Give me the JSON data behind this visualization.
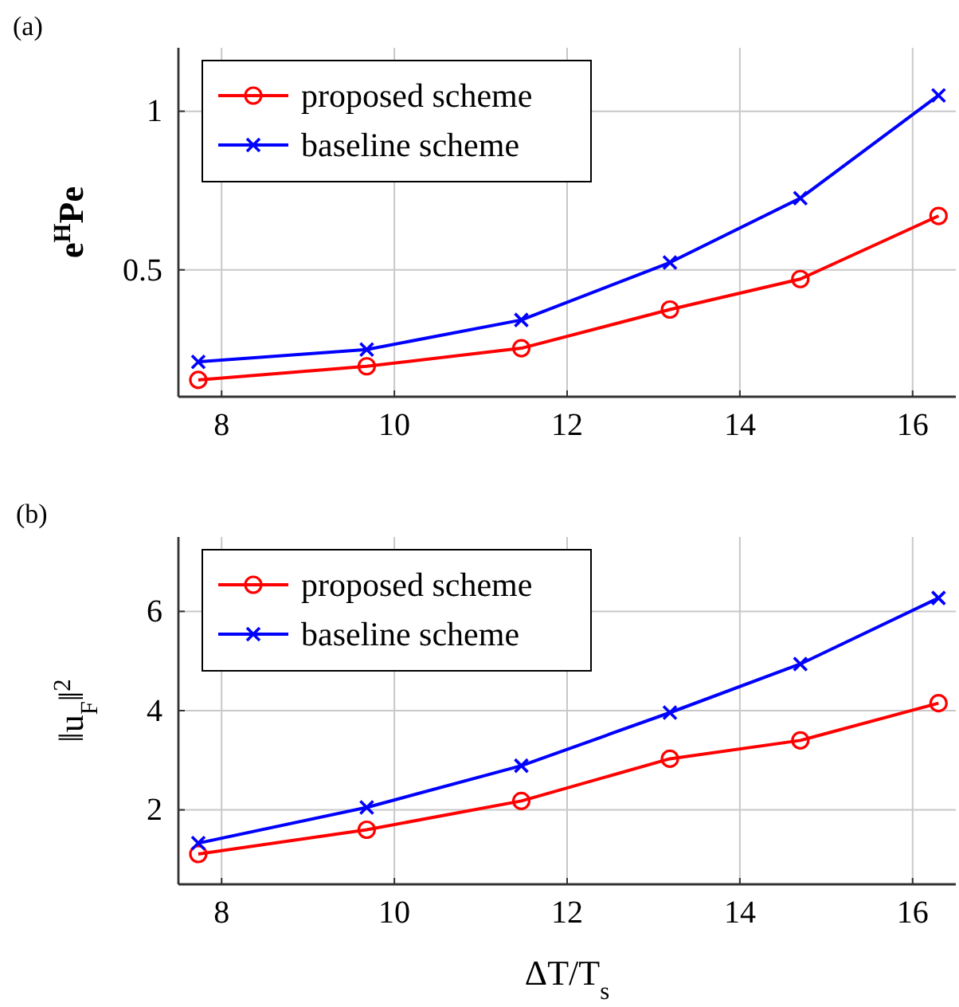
{
  "chart_data": [
    {
      "type": "line",
      "title": "(a)",
      "ylabel": "e$^{H}$Pe",
      "x": [
        7.73,
        9.68,
        11.47,
        13.19,
        14.7,
        16.3
      ],
      "xlim": [
        7.5,
        16.5
      ],
      "xticks": [
        8,
        10,
        12,
        14,
        16
      ],
      "ylim": [
        0.1,
        1.2
      ],
      "yticks": [
        0.5,
        1
      ],
      "grid": true,
      "legend": "top left",
      "line_style": "solid",
      "series": [
        {
          "name": "proposed scheme",
          "color": "#ff0000",
          "marker": "circle",
          "values": [
            0.153,
            0.196,
            0.253,
            0.375,
            0.471,
            0.67
          ]
        },
        {
          "name": "baseline scheme",
          "color": "#0000ff",
          "marker": "cross",
          "values": [
            0.21,
            0.249,
            0.342,
            0.523,
            0.726,
            1.05
          ]
        }
      ]
    },
    {
      "type": "line",
      "title": "(b)",
      "xlabel": "ΔT/T$_{s}$",
      "ylabel": "‖u$_{F}$‖$^{2}$",
      "x": [
        7.73,
        9.68,
        11.47,
        13.19,
        14.7,
        16.3
      ],
      "xlim": [
        7.5,
        16.5
      ],
      "xticks": [
        8,
        10,
        12,
        14,
        16
      ],
      "ylim": [
        0.5,
        7.5
      ],
      "yticks": [
        2,
        4,
        6
      ],
      "grid": true,
      "legend": "top left",
      "line_style": "solid",
      "series": [
        {
          "name": "proposed scheme",
          "color": "#ff0000",
          "marker": "circle",
          "values": [
            1.11,
            1.6,
            2.18,
            3.03,
            3.4,
            4.15
          ]
        },
        {
          "name": "baseline scheme",
          "color": "#0000ff",
          "marker": "cross",
          "values": [
            1.33,
            2.05,
            2.89,
            3.96,
            4.94,
            6.27
          ]
        }
      ]
    }
  ]
}
